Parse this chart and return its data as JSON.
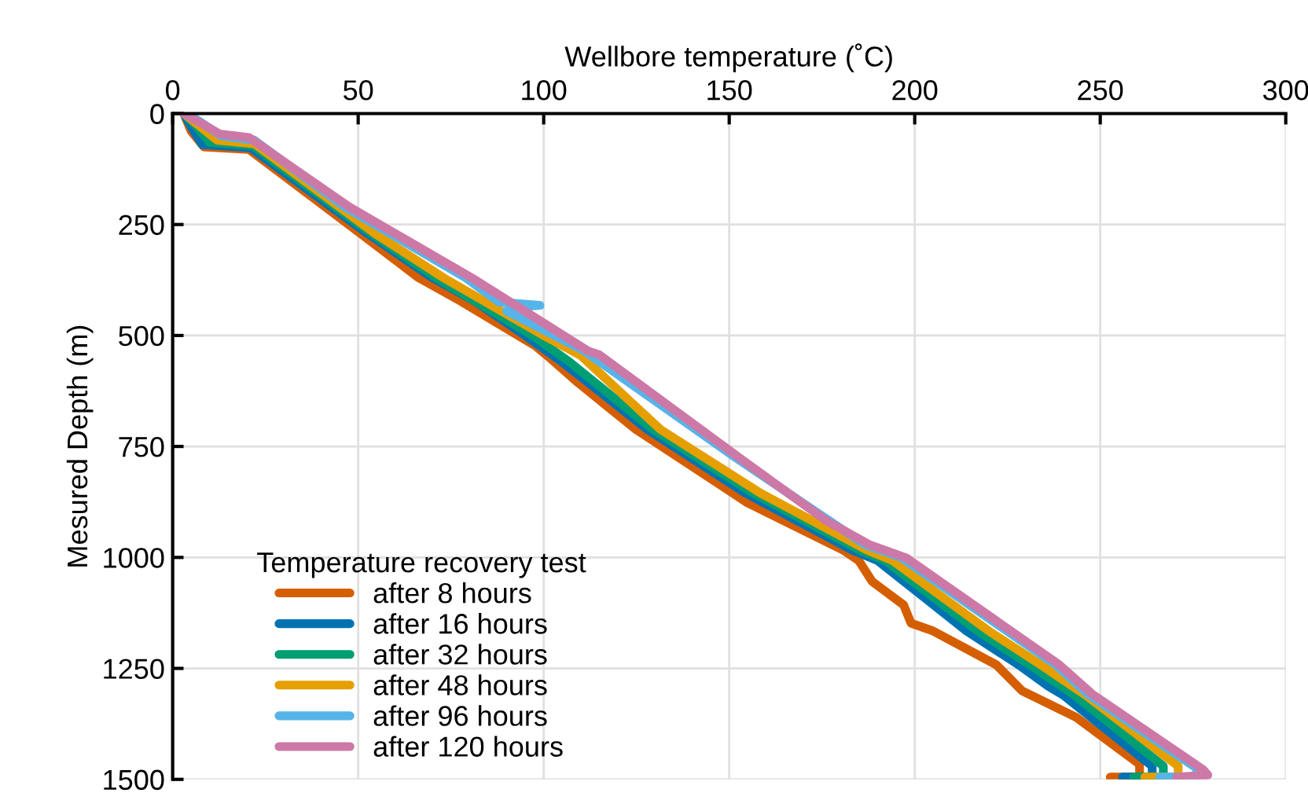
{
  "chart_data": {
    "type": "line",
    "xlabel": "Wellbore temperature (˚C)",
    "ylabel": "Mesured Depth (m)",
    "legend_title": "Temperature recovery test",
    "xlim": [
      0,
      300
    ],
    "xticks": [
      0,
      50,
      100,
      150,
      200,
      250,
      300
    ],
    "ylim": [
      1500,
      0
    ],
    "yticks": [
      0,
      250,
      500,
      750,
      1000,
      1250,
      1500
    ],
    "grid": true,
    "legend": "bottom left",
    "marker": "none",
    "line_style": "solid",
    "series": [
      {
        "name": "after 8 hours",
        "color": "#d55e00",
        "x": [
          3,
          5,
          8.4,
          20.6,
          50.6,
          66.3,
          77.7,
          97.7,
          102,
          109.2,
          124.9,
          150.6,
          154.9,
          180.6,
          184.9,
          188.5,
          197,
          199,
          205,
          222,
          229,
          243.5,
          260.6,
          260.6,
          252.7
        ],
        "values": [
          0,
          40,
          75,
          81,
          270,
          370,
          423,
          523,
          553,
          606,
          712,
          853,
          877,
          983,
          1007,
          1054,
          1107,
          1148,
          1166,
          1242,
          1301,
          1360,
          1466,
          1495,
          1495
        ]
      },
      {
        "name": "after 16 hours",
        "color": "#0072b2",
        "x": [
          3,
          5,
          8,
          21,
          52.5,
          70,
          81.5,
          95,
          105,
          112,
          128,
          154,
          183,
          190,
          214,
          228,
          236,
          240,
          264,
          264,
          256
        ],
        "values": [
          0,
          30,
          70,
          77,
          270,
          370,
          423,
          500,
          560,
          606,
          712,
          853,
          983,
          1007,
          1166,
          1242,
          1290,
          1310,
          1470,
          1495,
          1495
        ]
      },
      {
        "name": "after 32 hours",
        "color": "#009e73",
        "x": [
          3,
          6,
          10,
          21.5,
          53.5,
          71,
          97,
          107,
          129.5,
          156,
          185,
          192,
          217,
          231,
          243,
          267,
          267,
          259
        ],
        "values": [
          0,
          25,
          65,
          72,
          270,
          370,
          500,
          560,
          712,
          853,
          983,
          1007,
          1166,
          1242,
          1310,
          1470,
          1495,
          1495
        ]
      },
      {
        "name": "after 48 hours",
        "color": "#e69f00",
        "x": [
          3,
          12,
          22,
          54.5,
          73,
          100,
          110,
          131.5,
          158,
          187,
          194,
          220,
          234,
          246,
          271,
          271,
          262
        ],
        "values": [
          0,
          60,
          68,
          270,
          370,
          500,
          545,
          712,
          853,
          983,
          1007,
          1166,
          1242,
          1310,
          1470,
          1495,
          1495
        ]
      },
      {
        "name": "after 96 hours",
        "color": "#56b4e9",
        "x": [
          4,
          13,
          22,
          46.5,
          79,
          88,
          99,
          92,
          90,
          111,
          151,
          186.5,
          196.5,
          238,
          246.5,
          276,
          276,
          266
        ],
        "values": [
          0,
          50,
          60,
          211,
          370,
          425,
          432,
          437,
          445,
          535,
          771,
          971,
          1001,
          1242,
          1307,
          1475,
          1495,
          1495
        ]
      },
      {
        "name": "after 120 hours",
        "color": "#cc79a7",
        "x": [
          3,
          12.7,
          20.6,
          47.7,
          80.6,
          112,
          114.9,
          152,
          176.3,
          187.7,
          197.7,
          239,
          247.7,
          277.7,
          279,
          270.6
        ],
        "values": [
          0,
          46,
          54,
          211,
          370,
          535,
          543,
          771,
          918,
          971,
          1001,
          1242,
          1307,
          1478,
          1490,
          1495
        ]
      }
    ]
  }
}
